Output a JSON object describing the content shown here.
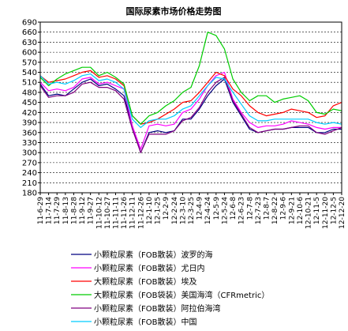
{
  "chart_data": {
    "type": "line",
    "title": "国际尿素市场价格走势图",
    "xlabel": "",
    "ylabel": "",
    "ylim": [
      180,
      690
    ],
    "yticks": [
      180,
      210,
      240,
      270,
      300,
      330,
      360,
      390,
      420,
      450,
      480,
      510,
      540,
      570,
      600,
      630,
      660,
      690
    ],
    "grid": true,
    "legend_position": "bottom",
    "categories": [
      "11-6-29",
      "11-7-14",
      "11-7-29",
      "11-8-13",
      "11-8-28",
      "11-9-12",
      "11-9-27",
      "11-10-12",
      "11-10-27",
      "11-11-11",
      "11-11-26",
      "11-12-11",
      "11-12-26",
      "12-1-10",
      "12-1-25",
      "12-2-9",
      "12-2-24",
      "12-3-10",
      "12-3-25",
      "12-4-9",
      "12-4-24",
      "12-5-9",
      "12-5-24",
      "12-6-8",
      "12-6-23",
      "12-7-8",
      "12-7-23",
      "12-8-7",
      "12-8-22",
      "12-9-6",
      "12-9-21",
      "12-10-6",
      "12-10-21",
      "12-11-5",
      "12-11-20",
      "12-12-5",
      "12-12-20"
    ],
    "series": [
      {
        "name": "小颗粒尿素（FOB散装）波罗的海",
        "color": "#000080",
        "values": [
          505,
          470,
          475,
          470,
          490,
          510,
          520,
          500,
          505,
          490,
          470,
          380,
          300,
          360,
          365,
          360,
          365,
          400,
          400,
          430,
          470,
          500,
          520,
          450,
          410,
          370,
          360,
          365,
          370,
          370,
          375,
          375,
          375,
          360,
          360,
          370,
          370
        ]
      },
      {
        "name": "小颗粒尿素（FOB散装）尤日内",
        "color": "#FF00FF",
        "values": [
          510,
          485,
          490,
          485,
          495,
          520,
          525,
          505,
          510,
          500,
          490,
          380,
          310,
          380,
          385,
          380,
          385,
          420,
          430,
          460,
          500,
          530,
          540,
          460,
          420,
          390,
          375,
          380,
          380,
          385,
          395,
          390,
          385,
          375,
          370,
          375,
          375
        ]
      },
      {
        "name": "大颗粒尿素（FOB散装）埃及",
        "color": "#FF0000",
        "values": [
          530,
          510,
          515,
          520,
          530,
          540,
          545,
          525,
          530,
          520,
          500,
          410,
          385,
          390,
          400,
          415,
          430,
          450,
          455,
          480,
          510,
          540,
          530,
          490,
          470,
          440,
          420,
          410,
          415,
          420,
          430,
          425,
          420,
          405,
          410,
          440,
          450
        ]
      },
      {
        "name": "大颗粒尿素（FOB袋装）美国海湾（CFRmetric）",
        "color": "#00CC00",
        "values": [
          525,
          500,
          520,
          535,
          545,
          555,
          555,
          530,
          540,
          525,
          505,
          410,
          385,
          410,
          420,
          440,
          455,
          480,
          495,
          560,
          660,
          650,
          610,
          520,
          480,
          455,
          470,
          470,
          450,
          460,
          465,
          470,
          455,
          420,
          415,
          430,
          425
        ]
      },
      {
        "name": "小颗粒尿素（FOB散装）阿拉伯海湾",
        "color": "#800080",
        "values": [
          500,
          465,
          470,
          470,
          480,
          505,
          510,
          495,
          495,
          485,
          460,
          370,
          300,
          355,
          355,
          355,
          365,
          395,
          405,
          435,
          480,
          510,
          525,
          455,
          415,
          375,
          360,
          365,
          370,
          370,
          375,
          380,
          380,
          360,
          355,
          365,
          375
        ]
      },
      {
        "name": "小颗粒尿素（FOB散装）中国",
        "color": "#00CCFF",
        "values": [
          530,
          505,
          510,
          505,
          515,
          530,
          535,
          515,
          520,
          510,
          490,
          400,
          375,
          395,
          400,
          400,
          410,
          430,
          440,
          470,
          500,
          525,
          520,
          480,
          445,
          410,
          395,
          395,
          400,
          400,
          400,
          400,
          400,
          390,
          385,
          390,
          385
        ]
      }
    ]
  }
}
